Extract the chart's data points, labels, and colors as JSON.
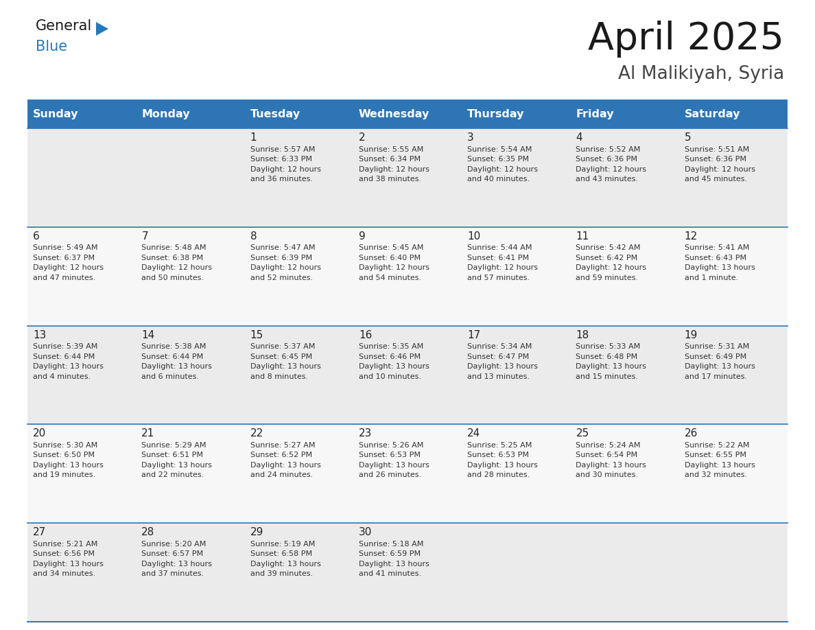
{
  "title": "April 2025",
  "subtitle": "Al Malikiyah, Syria",
  "header_bg_color": "#2E75B6",
  "header_text_color": "#FFFFFF",
  "cell_bg_odd": "#EBEBEB",
  "cell_bg_even": "#F7F7F7",
  "border_color": "#2E75B6",
  "title_color": "#1a1a1a",
  "subtitle_color": "#444444",
  "text_color": "#333333",
  "day_number_color": "#222222",
  "days_of_week": [
    "Sunday",
    "Monday",
    "Tuesday",
    "Wednesday",
    "Thursday",
    "Friday",
    "Saturday"
  ],
  "weeks": [
    [
      {
        "day": 0
      },
      {
        "day": 0
      },
      {
        "day": 1,
        "sunrise": "5:57 AM",
        "sunset": "6:33 PM",
        "daylight_line1": "Daylight: 12 hours",
        "daylight_line2": "and 36 minutes."
      },
      {
        "day": 2,
        "sunrise": "5:55 AM",
        "sunset": "6:34 PM",
        "daylight_line1": "Daylight: 12 hours",
        "daylight_line2": "and 38 minutes."
      },
      {
        "day": 3,
        "sunrise": "5:54 AM",
        "sunset": "6:35 PM",
        "daylight_line1": "Daylight: 12 hours",
        "daylight_line2": "and 40 minutes."
      },
      {
        "day": 4,
        "sunrise": "5:52 AM",
        "sunset": "6:36 PM",
        "daylight_line1": "Daylight: 12 hours",
        "daylight_line2": "and 43 minutes."
      },
      {
        "day": 5,
        "sunrise": "5:51 AM",
        "sunset": "6:36 PM",
        "daylight_line1": "Daylight: 12 hours",
        "daylight_line2": "and 45 minutes."
      }
    ],
    [
      {
        "day": 6,
        "sunrise": "5:49 AM",
        "sunset": "6:37 PM",
        "daylight_line1": "Daylight: 12 hours",
        "daylight_line2": "and 47 minutes."
      },
      {
        "day": 7,
        "sunrise": "5:48 AM",
        "sunset": "6:38 PM",
        "daylight_line1": "Daylight: 12 hours",
        "daylight_line2": "and 50 minutes."
      },
      {
        "day": 8,
        "sunrise": "5:47 AM",
        "sunset": "6:39 PM",
        "daylight_line1": "Daylight: 12 hours",
        "daylight_line2": "and 52 minutes."
      },
      {
        "day": 9,
        "sunrise": "5:45 AM",
        "sunset": "6:40 PM",
        "daylight_line1": "Daylight: 12 hours",
        "daylight_line2": "and 54 minutes."
      },
      {
        "day": 10,
        "sunrise": "5:44 AM",
        "sunset": "6:41 PM",
        "daylight_line1": "Daylight: 12 hours",
        "daylight_line2": "and 57 minutes."
      },
      {
        "day": 11,
        "sunrise": "5:42 AM",
        "sunset": "6:42 PM",
        "daylight_line1": "Daylight: 12 hours",
        "daylight_line2": "and 59 minutes."
      },
      {
        "day": 12,
        "sunrise": "5:41 AM",
        "sunset": "6:43 PM",
        "daylight_line1": "Daylight: 13 hours",
        "daylight_line2": "and 1 minute."
      }
    ],
    [
      {
        "day": 13,
        "sunrise": "5:39 AM",
        "sunset": "6:44 PM",
        "daylight_line1": "Daylight: 13 hours",
        "daylight_line2": "and 4 minutes."
      },
      {
        "day": 14,
        "sunrise": "5:38 AM",
        "sunset": "6:44 PM",
        "daylight_line1": "Daylight: 13 hours",
        "daylight_line2": "and 6 minutes."
      },
      {
        "day": 15,
        "sunrise": "5:37 AM",
        "sunset": "6:45 PM",
        "daylight_line1": "Daylight: 13 hours",
        "daylight_line2": "and 8 minutes."
      },
      {
        "day": 16,
        "sunrise": "5:35 AM",
        "sunset": "6:46 PM",
        "daylight_line1": "Daylight: 13 hours",
        "daylight_line2": "and 10 minutes."
      },
      {
        "day": 17,
        "sunrise": "5:34 AM",
        "sunset": "6:47 PM",
        "daylight_line1": "Daylight: 13 hours",
        "daylight_line2": "and 13 minutes."
      },
      {
        "day": 18,
        "sunrise": "5:33 AM",
        "sunset": "6:48 PM",
        "daylight_line1": "Daylight: 13 hours",
        "daylight_line2": "and 15 minutes."
      },
      {
        "day": 19,
        "sunrise": "5:31 AM",
        "sunset": "6:49 PM",
        "daylight_line1": "Daylight: 13 hours",
        "daylight_line2": "and 17 minutes."
      }
    ],
    [
      {
        "day": 20,
        "sunrise": "5:30 AM",
        "sunset": "6:50 PM",
        "daylight_line1": "Daylight: 13 hours",
        "daylight_line2": "and 19 minutes."
      },
      {
        "day": 21,
        "sunrise": "5:29 AM",
        "sunset": "6:51 PM",
        "daylight_line1": "Daylight: 13 hours",
        "daylight_line2": "and 22 minutes."
      },
      {
        "day": 22,
        "sunrise": "5:27 AM",
        "sunset": "6:52 PM",
        "daylight_line1": "Daylight: 13 hours",
        "daylight_line2": "and 24 minutes."
      },
      {
        "day": 23,
        "sunrise": "5:26 AM",
        "sunset": "6:53 PM",
        "daylight_line1": "Daylight: 13 hours",
        "daylight_line2": "and 26 minutes."
      },
      {
        "day": 24,
        "sunrise": "5:25 AM",
        "sunset": "6:53 PM",
        "daylight_line1": "Daylight: 13 hours",
        "daylight_line2": "and 28 minutes."
      },
      {
        "day": 25,
        "sunrise": "5:24 AM",
        "sunset": "6:54 PM",
        "daylight_line1": "Daylight: 13 hours",
        "daylight_line2": "and 30 minutes."
      },
      {
        "day": 26,
        "sunrise": "5:22 AM",
        "sunset": "6:55 PM",
        "daylight_line1": "Daylight: 13 hours",
        "daylight_line2": "and 32 minutes."
      }
    ],
    [
      {
        "day": 27,
        "sunrise": "5:21 AM",
        "sunset": "6:56 PM",
        "daylight_line1": "Daylight: 13 hours",
        "daylight_line2": "and 34 minutes."
      },
      {
        "day": 28,
        "sunrise": "5:20 AM",
        "sunset": "6:57 PM",
        "daylight_line1": "Daylight: 13 hours",
        "daylight_line2": "and 37 minutes."
      },
      {
        "day": 29,
        "sunrise": "5:19 AM",
        "sunset": "6:58 PM",
        "daylight_line1": "Daylight: 13 hours",
        "daylight_line2": "and 39 minutes."
      },
      {
        "day": 30,
        "sunrise": "5:18 AM",
        "sunset": "6:59 PM",
        "daylight_line1": "Daylight: 13 hours",
        "daylight_line2": "and 41 minutes."
      },
      {
        "day": 0
      },
      {
        "day": 0
      },
      {
        "day": 0
      }
    ]
  ],
  "logo_color_general": "#1a1a1a",
  "logo_color_blue": "#2579B8",
  "logo_triangle_color": "#2579B8",
  "cell_text_fontsize": 8.0,
  "day_num_fontsize": 11.0,
  "header_fontsize": 11.5
}
